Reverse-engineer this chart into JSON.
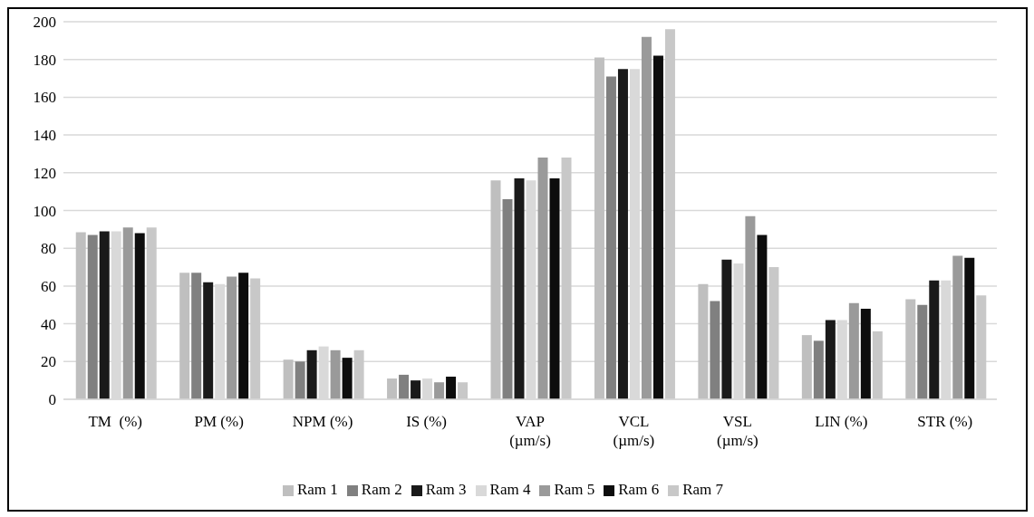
{
  "chart_data": {
    "type": "bar",
    "categories": [
      "TM  (%)",
      "PM (%)",
      "NPM (%)",
      "IS (%)",
      "VAP (µm/s)",
      "VCL (µm/s)",
      "VSL (µm/s)",
      "LIN (%)",
      "STR (%)"
    ],
    "series": [
      {
        "name": "Ram 1",
        "color": "#bfbfbf",
        "values": [
          88.5,
          67,
          21,
          11,
          116,
          181,
          61,
          34,
          53
        ]
      },
      {
        "name": "Ram 2",
        "color": "#808080",
        "values": [
          87,
          67,
          20,
          13,
          106,
          171,
          52,
          31,
          50
        ]
      },
      {
        "name": "Ram 3",
        "color": "#1a1a1a",
        "values": [
          89,
          62,
          26,
          10,
          117,
          175,
          74,
          42,
          63
        ]
      },
      {
        "name": "Ram 4",
        "color": "#d9d9d9",
        "values": [
          89,
          61,
          28,
          11,
          116,
          175,
          72,
          42,
          63
        ]
      },
      {
        "name": "Ram 5",
        "color": "#9a9a9a",
        "values": [
          91,
          65,
          26,
          9,
          128,
          192,
          97,
          51,
          76
        ]
      },
      {
        "name": "Ram 6",
        "color": "#0d0d0d",
        "values": [
          88,
          67,
          22,
          12,
          117,
          182,
          87,
          48,
          75
        ]
      },
      {
        "name": "Ram 7",
        "color": "#c8c8c8",
        "values": [
          91,
          64,
          26,
          9,
          128,
          196,
          70,
          36,
          55
        ]
      }
    ],
    "ylim": [
      0,
      200
    ],
    "yticks": [
      0,
      20,
      40,
      60,
      80,
      100,
      120,
      140,
      160,
      180,
      200
    ],
    "grid": "y",
    "legend": "bottom"
  }
}
